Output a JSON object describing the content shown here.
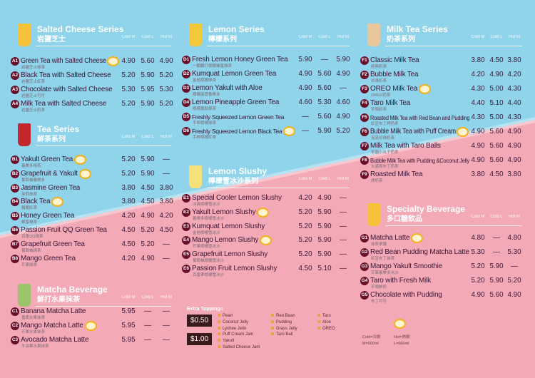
{
  "colors": {
    "top_bg": "#8fd4ea",
    "bottom_bg": "#f4aab6",
    "badge": "#6a0f2a",
    "text": "#3b1638"
  },
  "column_headers": [
    "Cold M",
    "Cold L",
    "Hot M"
  ],
  "sections": [
    {
      "id": "salted-cheese",
      "title": "Salted Cheese Series",
      "subtitle": "岩鹽芝士",
      "cup_color": "#f6c23a",
      "items": [
        {
          "code": "A1",
          "name": "Green Tea with Salted Cheese",
          "zh": "岩鹽芝士綠茶",
          "prices": [
            "4.90",
            "5.60",
            "4.90"
          ],
          "recommended": true
        },
        {
          "code": "A2",
          "name": "Black Tea with Salted Cheese",
          "zh": "岩鹽芝士紅茶",
          "prices": [
            "5.20",
            "5.90",
            "5.20"
          ]
        },
        {
          "code": "A3",
          "name": "Chocolate with Salted Cheese",
          "zh": "岩鹽芝士可可",
          "prices": [
            "5.30",
            "5.95",
            "5.30"
          ]
        },
        {
          "code": "A4",
          "name": "Milk Tea with Salted Cheese",
          "zh": "岩鹽芝士奶茶",
          "prices": [
            "5.20",
            "5.90",
            "5.20"
          ]
        }
      ]
    },
    {
      "id": "tea",
      "title": "Tea Series",
      "subtitle": "鮮茶系列",
      "cup_color": "#c0282e",
      "items": [
        {
          "code": "B1",
          "name": "Yakult Green Tea",
          "zh": "養樂多綠茶",
          "prices": [
            "5.20",
            "5.90",
            "—"
          ],
          "recommended": true
        },
        {
          "code": "B2",
          "name": "Grapefruit & Yakult",
          "zh": "葡萄柚養樂多",
          "prices": [
            "5.20",
            "5.90",
            "—"
          ],
          "recommended": true
        },
        {
          "code": "B3",
          "name": "Jasmine Green Tea",
          "zh": "茉莉綠茶",
          "prices": [
            "3.80",
            "4.50",
            "3.80"
          ]
        },
        {
          "code": "B4",
          "name": "Black Tea",
          "zh": "錫蘭紅茶",
          "prices": [
            "3.80",
            "4.50",
            "3.80"
          ],
          "recommended": true
        },
        {
          "code": "B5",
          "name": "Honey Green Tea",
          "zh": "蜂蜜綠茶",
          "prices": [
            "4.20",
            "4.90",
            "4.20"
          ]
        },
        {
          "code": "B6",
          "name": "Passion Fruit QQ Green Tea",
          "zh": "百香QQ綠茶",
          "prices": [
            "4.50",
            "5.20",
            "4.50"
          ]
        },
        {
          "code": "B7",
          "name": "Grapefruit Green Tea",
          "zh": "葡萄柚綠茶",
          "prices": [
            "4.50",
            "5.20",
            "—"
          ]
        },
        {
          "code": "B8",
          "name": "Mango Green Tea",
          "zh": "芒果綠茶",
          "prices": [
            "4.20",
            "4.90",
            "—"
          ]
        }
      ]
    },
    {
      "id": "matcha",
      "title": "Matcha Beverage",
      "subtitle": "鮮打水果抹茶",
      "cup_color": "#9cc46a",
      "items": [
        {
          "code": "C1",
          "name": "Banana Matcha Latte",
          "zh": "香蕉水果抹茶",
          "prices": [
            "5.95",
            "—",
            "—"
          ]
        },
        {
          "code": "C2",
          "name": "Mango Matcha Latte",
          "zh": "芒果水果抹茶",
          "prices": [
            "5.95",
            "—",
            "—"
          ],
          "recommended": true
        },
        {
          "code": "C3",
          "name": "Avocado Matcha Latte",
          "zh": "牛油果水果抹茶",
          "prices": [
            "5.95",
            "—",
            "—"
          ]
        }
      ]
    },
    {
      "id": "lemon",
      "title": "Lemon Series",
      "subtitle": "檸檬系列",
      "cup_color": "#f2c93a",
      "items": [
        {
          "code": "D1",
          "name": "Fresh Lemon Honey Green Tea",
          "zh": "一顆顆打檸檬蜂蜜綠茶",
          "prices": [
            "5.90",
            "—",
            "5.90"
          ]
        },
        {
          "code": "D2",
          "name": "Kumquat Lemon Green Tea",
          "zh": "金桔檸檬綠茶",
          "prices": [
            "4.90",
            "5.60",
            "4.90"
          ]
        },
        {
          "code": "D3",
          "name": "Lemon Yakult with Aloe",
          "zh": "檸檬蘆薈養樂多",
          "prices": [
            "4.90",
            "5.60",
            "—"
          ]
        },
        {
          "code": "D4",
          "name": "Lemon Pineapple Green Tea",
          "zh": "檸檬鳳梨綠茶",
          "prices": [
            "4.60",
            "5.30",
            "4.60"
          ]
        },
        {
          "code": "D5",
          "name": "Freshly Squeezed Lemon Green Tea",
          "zh": "手榨檸檬綠茶",
          "prices": [
            "—",
            "5.60",
            "4.90"
          ],
          "small": true
        },
        {
          "code": "D6",
          "name": "Freshly Squeezed Lemon Black Tea",
          "zh": "手榨檸檬紅茶",
          "prices": [
            "—",
            "5.90",
            "5.20"
          ],
          "small": true,
          "recommended": true
        }
      ]
    },
    {
      "id": "slushy",
      "title": "Lemon Slushy",
      "subtitle": "檸檬雪冰沙系列",
      "cup_color": "#f6e07a",
      "items": [
        {
          "code": "E1",
          "name": "Special Cooler Lemon Slushy",
          "zh": "冰爽檸檬雪冰沙",
          "prices": [
            "4.20",
            "4.90",
            "—"
          ]
        },
        {
          "code": "E2",
          "name": "Yakult Lemon Slushy",
          "zh": "養樂多檸檬雪冰沙",
          "prices": [
            "5.20",
            "5.90",
            "—"
          ],
          "recommended": true
        },
        {
          "code": "E3",
          "name": "Kumquat Lemon Slushy",
          "zh": "金桔檸檬雪冰沙",
          "prices": [
            "5.20",
            "5.90",
            "—"
          ]
        },
        {
          "code": "E4",
          "name": "Mango Lemon Slushy",
          "zh": "芒果檸檬雪冰沙",
          "prices": [
            "5.20",
            "5.90",
            "—"
          ],
          "recommended": true
        },
        {
          "code": "E5",
          "name": "Grapefruit Lemon Slushy",
          "zh": "葡萄柚檸檬雪冰沙",
          "prices": [
            "5.20",
            "5.90",
            "—"
          ]
        },
        {
          "code": "E6",
          "name": "Passion Fruit Lemon Slushy",
          "zh": "百香果檸檬雪冰沙",
          "prices": [
            "4.50",
            "5.10",
            "—"
          ]
        }
      ]
    },
    {
      "id": "milk-tea",
      "title": "Milk Tea Series",
      "subtitle": "奶茶系列",
      "cup_color": "#e9c79a",
      "items": [
        {
          "code": "F1",
          "name": "Classic Milk Tea",
          "zh": "經典奶茶",
          "prices": [
            "3.80",
            "4.50",
            "3.80"
          ]
        },
        {
          "code": "F2",
          "name": "Bubble Milk Tea",
          "zh": "珍珠奶茶",
          "prices": [
            "4.20",
            "4.90",
            "4.20"
          ]
        },
        {
          "code": "F3",
          "name": "OREO Milk Tea",
          "zh": "OREO奶茶",
          "prices": [
            "4.30",
            "5.00",
            "4.30"
          ],
          "recommended": true
        },
        {
          "code": "F4",
          "name": "Taro Milk Tea",
          "zh": "芋頭奶茶",
          "prices": [
            "4.40",
            "5.10",
            "4.40"
          ]
        },
        {
          "code": "F5",
          "name": "Roasted Milk Tea with Red Bean and Pudding",
          "zh": "紅豆布丁烤奶茶",
          "prices": [
            "4.30",
            "5.00",
            "4.30"
          ],
          "small": true
        },
        {
          "code": "F6",
          "name": "Bubble Milk Tea with Puff Cream",
          "zh": "泡芙珍珠奶茶",
          "prices": [
            "4.90",
            "5.60",
            "4.90"
          ],
          "recommended": true
        },
        {
          "code": "F7",
          "name": "Milk Tea with Taro Balls",
          "zh": "芋圓小丸子奶茶",
          "prices": [
            "4.90",
            "5.60",
            "4.90"
          ]
        },
        {
          "code": "F8",
          "name": "Bubble Milk Tea with Pudding &Coconut Jelly",
          "zh": "大滿貫布丁奶茶",
          "prices": [
            "4.90",
            "5.60",
            "4.90"
          ],
          "small": true
        },
        {
          "code": "F9",
          "name": "Roasted Milk Tea",
          "zh": "烤奶茶",
          "prices": [
            "3.80",
            "4.50",
            "3.80"
          ]
        }
      ]
    },
    {
      "id": "specialty",
      "title": "Specialty Beverage",
      "subtitle": "多口糖飲品",
      "cup_color": "#f7c23a",
      "items": [
        {
          "code": "G1",
          "name": "Matcha Latte",
          "zh": "抹茶拿鐵",
          "prices": [
            "4.80",
            "—",
            "4.80"
          ],
          "recommended": true
        },
        {
          "code": "G2",
          "name": "Red Bean Pudding Matcha Latte",
          "zh": "紅豆布丁抹茶",
          "prices": [
            "5.30",
            "—",
            "5.30"
          ],
          "small": false
        },
        {
          "code": "G3",
          "name": "Mango Yakult Smoothie",
          "zh": "芒果養樂多冰沙",
          "prices": [
            "5.20",
            "5.90",
            "—"
          ]
        },
        {
          "code": "G4",
          "name": "Taro with Fresh Milk",
          "zh": "芋頭鮮奶",
          "prices": [
            "5.20",
            "5.90",
            "5.20"
          ]
        },
        {
          "code": "G5",
          "name": "Chocolate with Pudding",
          "zh": "布丁可可",
          "prices": [
            "4.90",
            "5.60",
            "4.90"
          ]
        }
      ]
    }
  ],
  "toppings": {
    "title": "Extra Toppings",
    "groups": [
      {
        "price": "$0.50",
        "items": [
          "Pearl",
          "Coconut Jelly",
          "Lychee Jello",
          "Red Bean",
          "Pudding",
          "Grass Jelly",
          "Taro",
          "Aloe",
          "OREO"
        ]
      },
      {
        "price": "$1.00",
        "items": [
          "Puff Cream Jam",
          "Yakult",
          "Salted Cheese Jam",
          "Taro Ball"
        ]
      }
    ]
  },
  "legend": {
    "cold": "Cold=冷飲",
    "hot": "Hot=熱飲",
    "m": "M=500ml",
    "l": "L=660ml"
  }
}
